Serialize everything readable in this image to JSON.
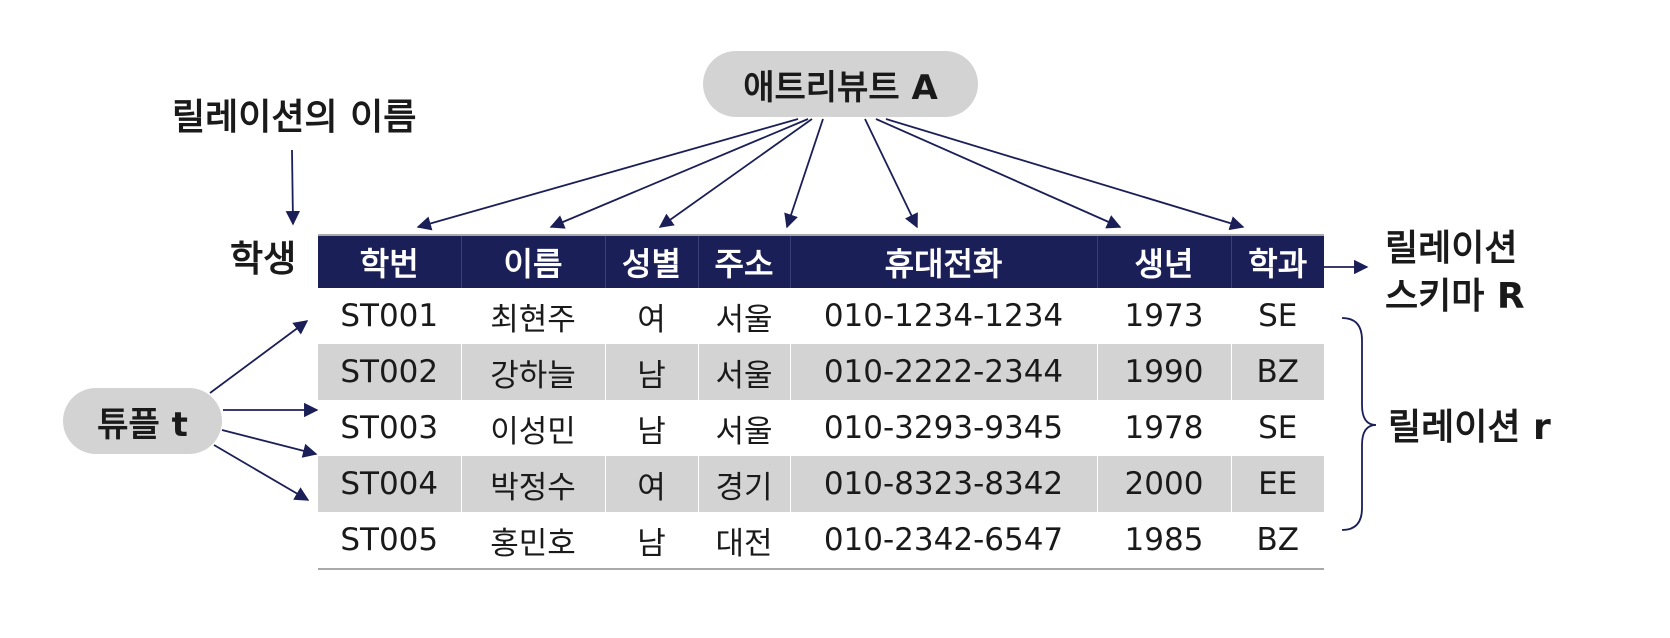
{
  "relation_name_label": "릴레이션의 이름",
  "relation_name": "학생",
  "attribute_label": "애트리뷰트 A",
  "tuple_label": "튜플 t",
  "schema_label": [
    "릴레이션",
    "스키마 R"
  ],
  "relation_label": "릴레이션 r",
  "table": {
    "headers": [
      "학번",
      "이름",
      "성별",
      "주소",
      "휴대전화",
      "생년",
      "학과"
    ],
    "rows": [
      [
        "ST001",
        "최현주",
        "여",
        "서울",
        "010-1234-1234",
        "1973",
        "SE"
      ],
      [
        "ST002",
        "강하늘",
        "남",
        "서울",
        "010-2222-2344",
        "1990",
        "BZ"
      ],
      [
        "ST003",
        "이성민",
        "남",
        "서울",
        "010-3293-9345",
        "1978",
        "SE"
      ],
      [
        "ST004",
        "박정수",
        "여",
        "경기",
        "010-8323-8342",
        "2000",
        "EE"
      ],
      [
        "ST005",
        "홍민호",
        "남",
        "대전",
        "010-2342-6547",
        "1985",
        "BZ"
      ]
    ]
  },
  "colors": {
    "header_bg": "#1b1f57",
    "arrow": "#1b1f57",
    "bubble_bg": "#d3d3d3",
    "stripe_bg": "#d3d3d3"
  }
}
